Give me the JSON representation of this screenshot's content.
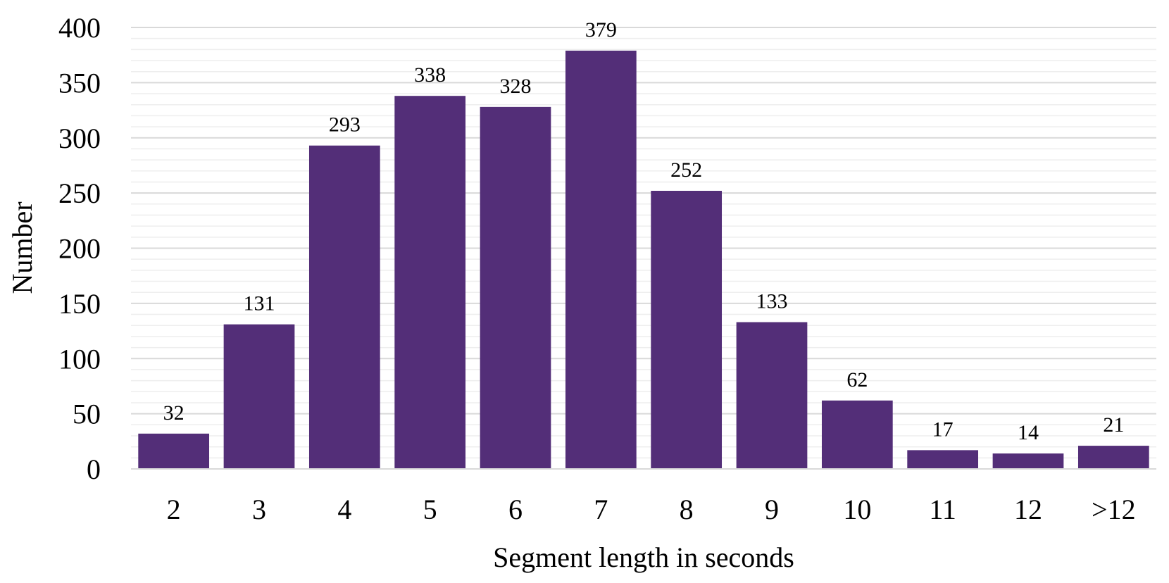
{
  "chart_data": {
    "type": "bar",
    "title": "",
    "xlabel": "Segment length in seconds",
    "ylabel": "Number",
    "categories": [
      "2",
      "3",
      "4",
      "5",
      "6",
      "7",
      "8",
      "9",
      "10",
      "11",
      "12",
      ">12"
    ],
    "values": [
      32,
      131,
      293,
      338,
      328,
      379,
      252,
      133,
      62,
      17,
      14,
      21
    ],
    "ylim": [
      0,
      400
    ],
    "yticks": [
      "0",
      "50",
      "100",
      "150",
      "200",
      "250",
      "300",
      "350",
      "400"
    ],
    "grid": true,
    "legend": "none",
    "bar_color": "#532e78"
  }
}
